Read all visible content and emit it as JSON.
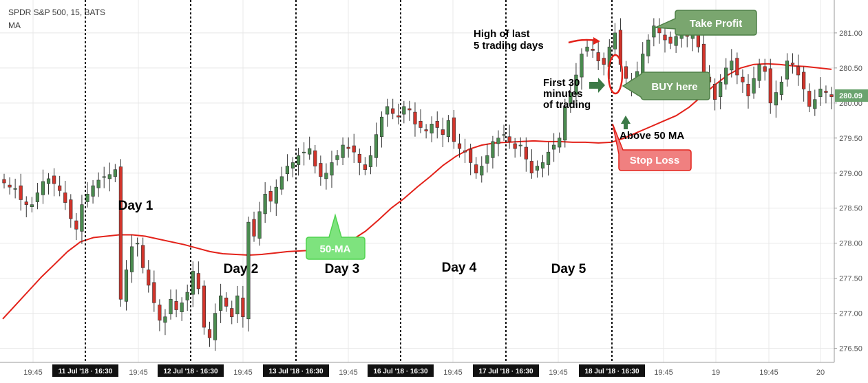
{
  "header": {
    "symbol_line": "SPDR S&P 500, 15, BATS",
    "indicator": "MA"
  },
  "colors": {
    "up": "#4a8b4f",
    "down": "#d1342b",
    "ma_line": "#e3221a",
    "grid": "#e8e8e8",
    "price_tag": "#6aa36e",
    "callout_green": "#7aa66f",
    "callout_bright_green": "#7ee37e",
    "callout_red": "#f08080"
  },
  "chart_data": {
    "type": "candlestick",
    "title": "SPDR S&P 500, 15, BATS",
    "ylim": [
      276.3,
      281.45
    ],
    "y_ticks": [
      "276.50",
      "277.00",
      "277.50",
      "278.00",
      "278.50",
      "279.00",
      "279.50",
      "280.00",
      "280.50",
      "281.00"
    ],
    "last_price": "280.09",
    "x_tick_labels": [
      "19:45",
      "11 Jul '18 · 16:30",
      "19:45",
      "12 Jul '18 · 16:30",
      "19:45",
      "13 Jul '18 · 16:30",
      "19:45",
      "16 Jul '18 · 16:30",
      "19:45",
      "17 Jul '18 · 16:30",
      "19:45",
      "18 Jul '18 · 16:30",
      "19:45",
      "19",
      "19:45",
      "20"
    ],
    "day_labels": [
      "Day 1",
      "Day 2",
      "Day 3",
      "Day 4",
      "Day 5"
    ],
    "series": [
      {
        "name": "MA",
        "period": "50",
        "values": [
          276.92,
          277.12,
          277.32,
          277.52,
          277.7,
          277.88,
          278.02,
          278.08,
          278.1,
          278.12,
          278.12,
          278.1,
          278.06,
          278.02,
          277.98,
          277.93,
          277.88,
          277.85,
          277.84,
          277.83,
          277.84,
          277.86,
          277.88,
          277.89,
          277.9,
          277.92,
          277.96,
          278.05,
          278.17,
          278.33,
          278.5,
          278.64,
          278.8,
          278.95,
          279.11,
          279.24,
          279.34,
          279.4,
          279.43,
          279.44,
          279.45,
          279.46,
          279.45,
          279.45,
          279.44,
          279.44,
          279.43,
          279.44,
          279.5,
          279.58,
          279.66,
          279.74,
          279.82,
          279.94,
          280.1,
          280.26,
          280.4,
          280.5,
          280.55,
          280.56,
          280.55,
          280.53,
          280.52,
          280.5,
          280.48
        ]
      },
      {
        "name": "SPY 15m candles",
        "type": "candlestick",
        "close": [
          278.86,
          278.8,
          278.78,
          278.62,
          278.55,
          278.55,
          278.72,
          278.88,
          278.92,
          278.85,
          278.75,
          278.58,
          278.35,
          278.2,
          278.55,
          278.7,
          278.82,
          278.9,
          278.95,
          278.98,
          279.05,
          277.2,
          277.62,
          277.95,
          278.0,
          277.65,
          277.4,
          277.15,
          276.9,
          276.95,
          277.2,
          277.05,
          277.15,
          277.3,
          277.6,
          277.35,
          276.8,
          276.65,
          277.0,
          277.25,
          277.1,
          276.95,
          277.25,
          276.95,
          278.3,
          278.1,
          278.45,
          278.7,
          278.6,
          278.8,
          278.95,
          279.1,
          279.15,
          279.25,
          279.3,
          279.35,
          279.1,
          278.95,
          279.0,
          279.15,
          279.25,
          279.4,
          279.35,
          279.3,
          279.15,
          279.05,
          279.25,
          279.55,
          279.8,
          279.95,
          279.85,
          279.8,
          279.95,
          279.9,
          279.7,
          279.65,
          279.6,
          279.7,
          279.65,
          279.55,
          279.75,
          279.45,
          279.35,
          279.3,
          279.15,
          279.0,
          279.1,
          279.25,
          279.45,
          279.5,
          279.55,
          279.45,
          279.35,
          279.4,
          279.2,
          279.0,
          279.1,
          279.15,
          279.3,
          279.4,
          279.5,
          279.95,
          280.15,
          280.4,
          280.7,
          280.8,
          280.75,
          280.6,
          280.55,
          280.8,
          281.0,
          280.55,
          280.35,
          280.25,
          280.45,
          280.7,
          280.9,
          281.1,
          281.0,
          280.9,
          280.85,
          280.95,
          281.0,
          280.95,
          281.05,
          280.8,
          280.4,
          280.3,
          280.05,
          280.3,
          280.5,
          280.6,
          280.4,
          280.3,
          280.1,
          280.35,
          280.55,
          280.45,
          280.0,
          280.15,
          280.3,
          280.6,
          280.55,
          280.4,
          280.2,
          279.95,
          280.05,
          280.2,
          280.15,
          280.09
        ]
      }
    ],
    "annotations": [
      "High of last",
      "5 trading days",
      "First 30",
      "minutes",
      "of trading",
      "Take Profit",
      "BUY here",
      "Above 50 MA",
      "Stop Loss",
      "50-MA"
    ]
  },
  "callouts": {
    "high_line1": "High of last",
    "high_line2": "5 trading days",
    "first30_line1": "First 30",
    "first30_line2": "minutes",
    "first30_line3": "of trading",
    "take_profit": "Take Profit",
    "buy_here": "BUY here",
    "above_ma": "Above 50 MA",
    "stop_loss": "Stop Loss",
    "ma_label": "50-MA"
  }
}
